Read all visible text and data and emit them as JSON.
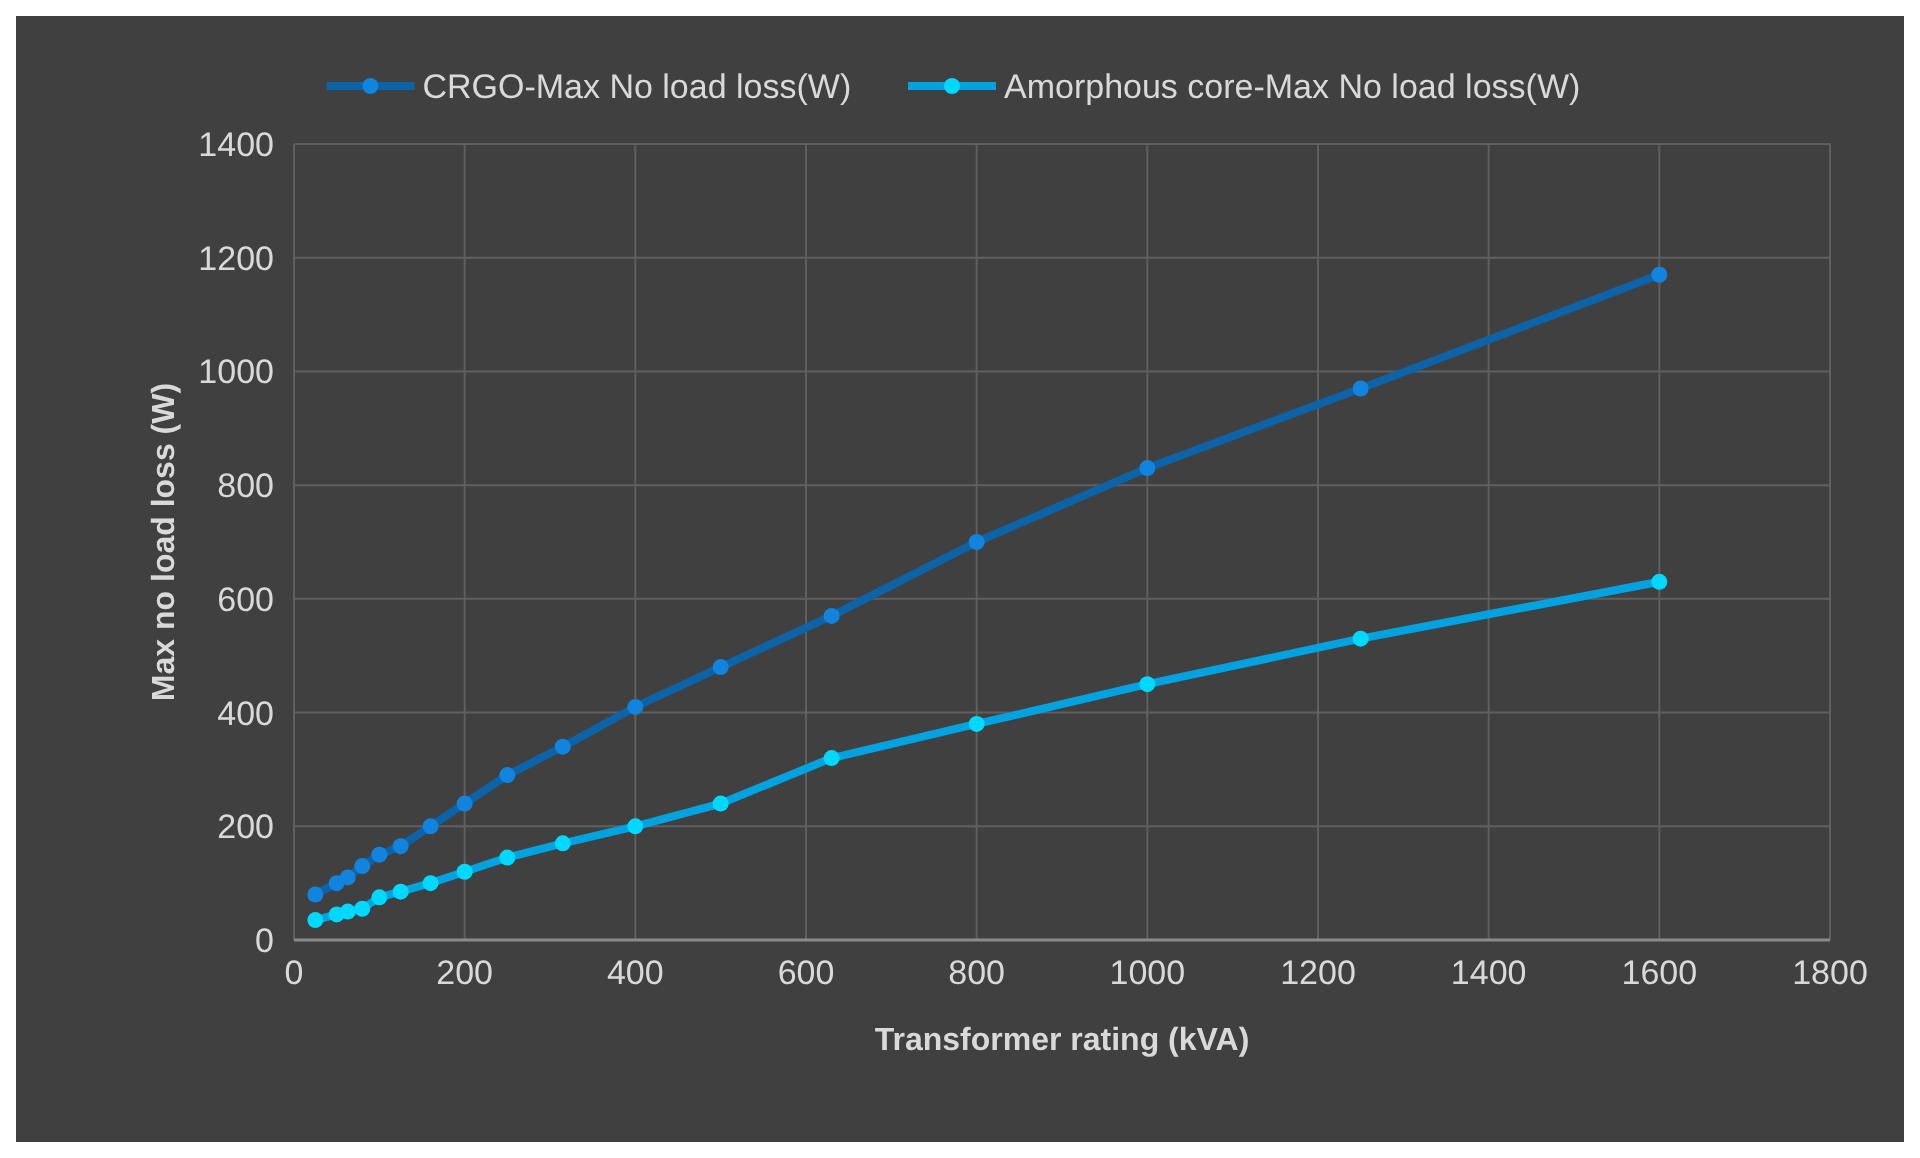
{
  "chart_data": {
    "type": "line",
    "xlabel": "Transformer rating (kVA)",
    "ylabel": "Max no load loss (W)",
    "x": [
      25,
      50,
      63,
      80,
      100,
      125,
      160,
      200,
      250,
      315,
      400,
      500,
      630,
      800,
      1000,
      1250,
      1600
    ],
    "series": [
      {
        "name": "CRGO-Max No load loss(W)",
        "color": "#0d63a8",
        "values": [
          80,
          100,
          110,
          130,
          150,
          165,
          200,
          240,
          290,
          340,
          410,
          480,
          570,
          700,
          830,
          970,
          1170
        ]
      },
      {
        "name": "Amorphous core-Max No load loss(W)",
        "color": "#00a3e0",
        "values": [
          35,
          45,
          50,
          55,
          75,
          85,
          100,
          120,
          145,
          170,
          200,
          240,
          320,
          380,
          450,
          530,
          630
        ]
      }
    ],
    "xlim": [
      0,
      1800
    ],
    "xticks": [
      0,
      200,
      400,
      600,
      800,
      1000,
      1200,
      1400,
      1600,
      1800
    ],
    "ylim": [
      0,
      1400
    ],
    "yticks": [
      0,
      200,
      400,
      600,
      800,
      1000,
      1200,
      1400
    ],
    "grid": true,
    "legend": "top",
    "marker": "circle",
    "line_style": "solid"
  }
}
